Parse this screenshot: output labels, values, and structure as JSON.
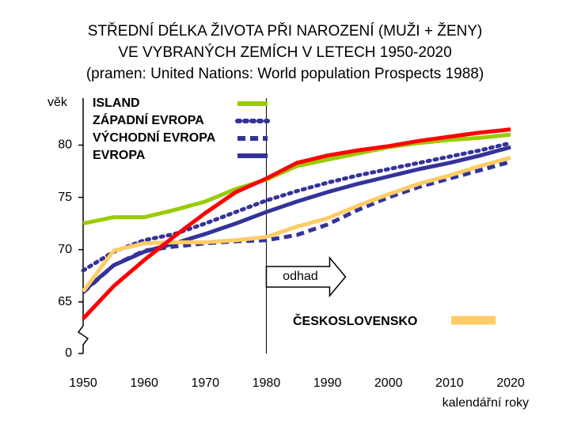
{
  "chart_data": {
    "type": "line",
    "title": [
      "STŘEDNÍ DÉLKA ŽIVOTA PŘI NAROZENÍ (MUŽI + ŽENY)",
      "VE VYBRANÝCH ZEMÍCH V LETECH 1950-2020",
      "(pramen: United Nations: World population Prospects 1988)"
    ],
    "y_label": "věk",
    "x_label": "kalendářní roky",
    "annotation": {
      "text": "odhad",
      "x": 1980
    },
    "x": [
      1950,
      1955,
      1960,
      1965,
      1970,
      1975,
      1980,
      1985,
      1990,
      1995,
      2000,
      2005,
      2010,
      2015,
      2020
    ],
    "series": [
      {
        "name": "ISLAND",
        "color": "#99cc00",
        "dash": "solid",
        "legend_corner": "upper-left",
        "values": [
          72.5,
          73.1,
          73.1,
          73.8,
          74.6,
          75.8,
          76.7,
          78.0,
          78.6,
          79.2,
          79.8,
          80.2,
          80.5,
          80.7,
          81.0
        ]
      },
      {
        "name": "ZÁPADNÍ EVROPA",
        "color": "#333399",
        "dash": "dotted",
        "legend_corner": "upper-left",
        "values": [
          68.0,
          69.8,
          70.9,
          71.5,
          72.5,
          73.6,
          74.7,
          75.6,
          76.4,
          77.1,
          77.7,
          78.3,
          78.9,
          79.5,
          80.2
        ]
      },
      {
        "name": "VÝCHODNÍ EVROPA",
        "color": "#333399",
        "dash": "dashed",
        "legend_corner": "upper-left",
        "values": [
          65.9,
          68.5,
          69.9,
          70.3,
          70.6,
          70.8,
          70.9,
          71.4,
          72.4,
          73.8,
          75.0,
          76.0,
          76.8,
          77.6,
          78.4
        ]
      },
      {
        "name": "EVROPA",
        "color": "#333399",
        "dash": "solid",
        "legend_corner": "upper-left",
        "values": [
          66.0,
          68.5,
          69.8,
          70.6,
          71.5,
          72.5,
          73.6,
          74.6,
          75.5,
          76.3,
          77.0,
          77.7,
          78.3,
          79.0,
          79.8
        ]
      },
      {
        "color": "#ff0000",
        "dash": "solid",
        "values": [
          63.4,
          66.5,
          69.0,
          71.3,
          73.5,
          75.5,
          76.8,
          78.3,
          79.0,
          79.5,
          79.9,
          80.4,
          80.8,
          81.2,
          81.5
        ]
      },
      {
        "name": "ČESKOSLOVENSKO",
        "color": "#ffcc66",
        "dash": "solid",
        "legend_corner": "lower-right",
        "values": [
          66.0,
          69.9,
          70.6,
          70.7,
          70.7,
          70.9,
          71.2,
          72.2,
          73.0,
          74.2,
          75.3,
          76.3,
          77.1,
          78.0,
          78.8
        ]
      }
    ],
    "xlim": [
      1950,
      2020
    ],
    "xticks": [
      1950,
      1960,
      1970,
      1980,
      1990,
      2000,
      2010,
      2020
    ],
    "ylim": [
      61.5,
      84.5
    ],
    "yticks": [
      0,
      65,
      70,
      75,
      80
    ],
    "axis_break": true
  }
}
